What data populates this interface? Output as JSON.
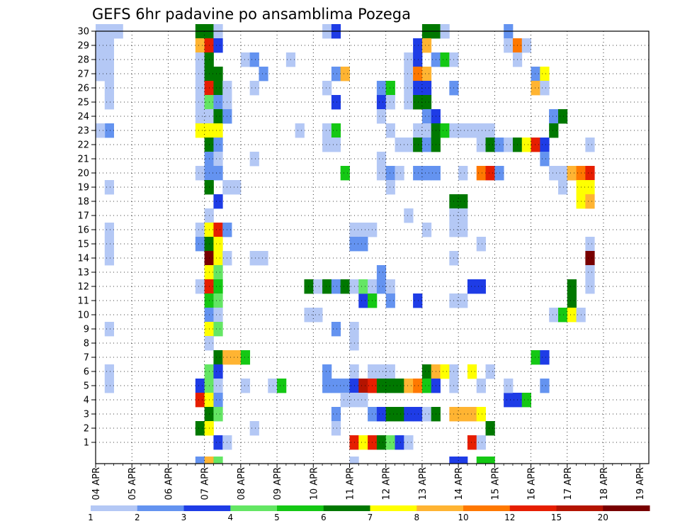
{
  "chart_data": {
    "type": "heatmap",
    "title": "GEFS 6hr padavine po ansamblima Pozega",
    "xlabel": "",
    "ylabel": "",
    "x_ticks": [
      "04 APR",
      "05 APR",
      "06 APR",
      "07 APR",
      "08 APR",
      "09 APR",
      "10 APR",
      "11 APR",
      "12 APR",
      "13 APR",
      "14 APR",
      "15 APR",
      "16 APR",
      "17 APR",
      "18 APR",
      "19 APR"
    ],
    "y_ticks": [
      "1",
      "2",
      "3",
      "4",
      "5",
      "6",
      "7",
      "8",
      "9",
      "10",
      "11",
      "12",
      "13",
      "14",
      "15",
      "16",
      "17",
      "18",
      "19",
      "20",
      "21",
      "22",
      "23",
      "24",
      "25",
      "26",
      "27",
      "28",
      "29",
      "30"
    ],
    "time_step_hours": 6,
    "ensemble_members": 30,
    "grid": true,
    "legend_position": "bottom",
    "colorbar": {
      "levels": [
        "1",
        "2",
        "3",
        "4",
        "5",
        "6",
        "7",
        "8",
        "10",
        "12",
        "15",
        "20"
      ],
      "colors": [
        "#b4c8f5",
        "#6493f0",
        "#1e3ce6",
        "#64e664",
        "#14c814",
        "#007800",
        "#ffff00",
        "#ffb432",
        "#ff7800",
        "#e61e00",
        "#b41400",
        "#780000"
      ]
    },
    "cells": [
      [
        0,
        30,
        0
      ],
      [
        0,
        29,
        0
      ],
      [
        0,
        28,
        0
      ],
      [
        0,
        27,
        0
      ],
      [
        1,
        30,
        0
      ],
      [
        1,
        29,
        0
      ],
      [
        1,
        28,
        0
      ],
      [
        1,
        27,
        0
      ],
      [
        1,
        26,
        0
      ],
      [
        1,
        25,
        0
      ],
      [
        1,
        23,
        1
      ],
      [
        1,
        19,
        0
      ],
      [
        1,
        16,
        0
      ],
      [
        1,
        15,
        0
      ],
      [
        1,
        14,
        0
      ],
      [
        1,
        9,
        0
      ],
      [
        1,
        6,
        0
      ],
      [
        1,
        5,
        0
      ],
      [
        2,
        30,
        0
      ],
      [
        0,
        23,
        0
      ],
      [
        11,
        30,
        5
      ],
      [
        11,
        29,
        7
      ],
      [
        11,
        28,
        0
      ],
      [
        11,
        27,
        0
      ],
      [
        11,
        26,
        0
      ],
      [
        11,
        25,
        0
      ],
      [
        11,
        24,
        0
      ],
      [
        11,
        23,
        6
      ],
      [
        11,
        20,
        0
      ],
      [
        11,
        16,
        0
      ],
      [
        11,
        15,
        1
      ],
      [
        11,
        12,
        0
      ],
      [
        11,
        5,
        2
      ],
      [
        11,
        4,
        9
      ],
      [
        11,
        2,
        5
      ],
      [
        11,
        0,
        1
      ],
      [
        12,
        30,
        5
      ],
      [
        12,
        29,
        9
      ],
      [
        12,
        28,
        5
      ],
      [
        12,
        27,
        5
      ],
      [
        12,
        26,
        9
      ],
      [
        12,
        25,
        3
      ],
      [
        12,
        24,
        0
      ],
      [
        12,
        23,
        6
      ],
      [
        12,
        22,
        5
      ],
      [
        12,
        21,
        1
      ],
      [
        12,
        20,
        1
      ],
      [
        12,
        19,
        5
      ],
      [
        12,
        17,
        0
      ],
      [
        12,
        16,
        6
      ],
      [
        12,
        15,
        5
      ],
      [
        12,
        14,
        11
      ],
      [
        12,
        13,
        6
      ],
      [
        12,
        12,
        9
      ],
      [
        12,
        11,
        4
      ],
      [
        12,
        10,
        1
      ],
      [
        12,
        9,
        6
      ],
      [
        12,
        8,
        0
      ],
      [
        12,
        6,
        3
      ],
      [
        12,
        5,
        3
      ],
      [
        12,
        4,
        6
      ],
      [
        12,
        3,
        5
      ],
      [
        12,
        2,
        6
      ],
      [
        12,
        0,
        7
      ],
      [
        13,
        30,
        0
      ],
      [
        13,
        29,
        2
      ],
      [
        13,
        27,
        5
      ],
      [
        13,
        26,
        5
      ],
      [
        13,
        25,
        1
      ],
      [
        13,
        24,
        5
      ],
      [
        13,
        23,
        6
      ],
      [
        13,
        22,
        1
      ],
      [
        13,
        21,
        0
      ],
      [
        13,
        20,
        1
      ],
      [
        13,
        18,
        2
      ],
      [
        13,
        16,
        9
      ],
      [
        13,
        15,
        6
      ],
      [
        13,
        14,
        6
      ],
      [
        13,
        13,
        3
      ],
      [
        13,
        12,
        4
      ],
      [
        13,
        11,
        3
      ],
      [
        13,
        10,
        0
      ],
      [
        13,
        9,
        3
      ],
      [
        13,
        7,
        5
      ],
      [
        13,
        6,
        2
      ],
      [
        13,
        5,
        0
      ],
      [
        13,
        4,
        1
      ],
      [
        13,
        3,
        3
      ],
      [
        13,
        1,
        2
      ],
      [
        13,
        0,
        3
      ],
      [
        14,
        26,
        0
      ],
      [
        14,
        25,
        0
      ],
      [
        14,
        24,
        1
      ],
      [
        14,
        19,
        0
      ],
      [
        14,
        16,
        1
      ],
      [
        14,
        14,
        0
      ],
      [
        14,
        7,
        7
      ],
      [
        14,
        1,
        0
      ],
      [
        15,
        19,
        0
      ],
      [
        15,
        7,
        7
      ],
      [
        16,
        28,
        0
      ],
      [
        16,
        7,
        4
      ],
      [
        16,
        5,
        0
      ],
      [
        17,
        28,
        1
      ],
      [
        17,
        26,
        0
      ],
      [
        17,
        21,
        0
      ],
      [
        17,
        14,
        0
      ],
      [
        18,
        27,
        1
      ],
      [
        18,
        14,
        0
      ],
      [
        17,
        2,
        0
      ],
      [
        19,
        5,
        0
      ],
      [
        20,
        5,
        4
      ],
      [
        21,
        28,
        0
      ],
      [
        22,
        23,
        0
      ],
      [
        23,
        12,
        5
      ],
      [
        23,
        10,
        0
      ],
      [
        24,
        12,
        0
      ],
      [
        24,
        10,
        0
      ],
      [
        25,
        30,
        0
      ],
      [
        25,
        26,
        0
      ],
      [
        25,
        23,
        0
      ],
      [
        25,
        22,
        0
      ],
      [
        25,
        12,
        5
      ],
      [
        25,
        6,
        1
      ],
      [
        25,
        5,
        1
      ],
      [
        26,
        30,
        2
      ],
      [
        26,
        27,
        1
      ],
      [
        26,
        25,
        2
      ],
      [
        26,
        23,
        4
      ],
      [
        26,
        22,
        0
      ],
      [
        26,
        12,
        1
      ],
      [
        26,
        9,
        1
      ],
      [
        26,
        5,
        1
      ],
      [
        26,
        3,
        1
      ],
      [
        26,
        2,
        0
      ],
      [
        27,
        27,
        7
      ],
      [
        27,
        20,
        4
      ],
      [
        27,
        12,
        5
      ],
      [
        27,
        5,
        1
      ],
      [
        27,
        4,
        0
      ],
      [
        28,
        16,
        0
      ],
      [
        28,
        15,
        1
      ],
      [
        28,
        12,
        0
      ],
      [
        28,
        8,
        0
      ],
      [
        28,
        6,
        0
      ],
      [
        28,
        5,
        2
      ],
      [
        28,
        4,
        0
      ],
      [
        28,
        9,
        0
      ],
      [
        28,
        1,
        9
      ],
      [
        28,
        0,
        0
      ],
      [
        29,
        16,
        0
      ],
      [
        29,
        15,
        1
      ],
      [
        29,
        11,
        2
      ],
      [
        29,
        12,
        3
      ],
      [
        29,
        5,
        10
      ],
      [
        29,
        4,
        0
      ],
      [
        29,
        1,
        6
      ],
      [
        30,
        16,
        0
      ],
      [
        30,
        12,
        0
      ],
      [
        30,
        11,
        4
      ],
      [
        30,
        6,
        0
      ],
      [
        30,
        5,
        9
      ],
      [
        30,
        3,
        1
      ],
      [
        30,
        1,
        9
      ],
      [
        31,
        26,
        1
      ],
      [
        31,
        25,
        2
      ],
      [
        31,
        24,
        0
      ],
      [
        31,
        21,
        0
      ],
      [
        31,
        20,
        0
      ],
      [
        31,
        13,
        1
      ],
      [
        31,
        12,
        1
      ],
      [
        31,
        6,
        0
      ],
      [
        31,
        5,
        5
      ],
      [
        31,
        3,
        2
      ],
      [
        31,
        1,
        5
      ],
      [
        32,
        26,
        4
      ],
      [
        32,
        25,
        0
      ],
      [
        32,
        23,
        0
      ],
      [
        32,
        20,
        1
      ],
      [
        32,
        19,
        0
      ],
      [
        32,
        12,
        0
      ],
      [
        32,
        11,
        1
      ],
      [
        32,
        6,
        0
      ],
      [
        32,
        5,
        5
      ],
      [
        32,
        3,
        5
      ],
      [
        32,
        1,
        3
      ],
      [
        33,
        22,
        0
      ],
      [
        33,
        20,
        0
      ],
      [
        33,
        5,
        5
      ],
      [
        33,
        3,
        5
      ],
      [
        33,
        1,
        2
      ],
      [
        34,
        28,
        0
      ],
      [
        34,
        27,
        0
      ],
      [
        34,
        26,
        0
      ],
      [
        34,
        25,
        0
      ],
      [
        34,
        22,
        0
      ],
      [
        34,
        17,
        0
      ],
      [
        34,
        5,
        7
      ],
      [
        34,
        3,
        2
      ],
      [
        34,
        1,
        0
      ],
      [
        35,
        29,
        2
      ],
      [
        35,
        28,
        2
      ],
      [
        35,
        27,
        8
      ],
      [
        35,
        26,
        2
      ],
      [
        35,
        25,
        5
      ],
      [
        35,
        23,
        0
      ],
      [
        35,
        22,
        5
      ],
      [
        35,
        20,
        1
      ],
      [
        35,
        11,
        2
      ],
      [
        35,
        5,
        8
      ],
      [
        35,
        3,
        2
      ],
      [
        36,
        30,
        5
      ],
      [
        36,
        29,
        7
      ],
      [
        36,
        27,
        7
      ],
      [
        36,
        26,
        2
      ],
      [
        36,
        25,
        5
      ],
      [
        36,
        24,
        1
      ],
      [
        36,
        23,
        0
      ],
      [
        36,
        22,
        1
      ],
      [
        36,
        20,
        1
      ],
      [
        36,
        16,
        0
      ],
      [
        36,
        6,
        5
      ],
      [
        36,
        5,
        4
      ],
      [
        36,
        3,
        0
      ],
      [
        37,
        30,
        5
      ],
      [
        37,
        28,
        1
      ],
      [
        37,
        24,
        2
      ],
      [
        37,
        23,
        5
      ],
      [
        37,
        22,
        5
      ],
      [
        37,
        20,
        1
      ],
      [
        37,
        6,
        7
      ],
      [
        37,
        5,
        2
      ],
      [
        37,
        3,
        5
      ],
      [
        38,
        30,
        0
      ],
      [
        38,
        28,
        4
      ],
      [
        38,
        23,
        4
      ],
      [
        38,
        6,
        6
      ],
      [
        39,
        28,
        0
      ],
      [
        39,
        26,
        1
      ],
      [
        39,
        23,
        0
      ],
      [
        39,
        18,
        5
      ],
      [
        39,
        17,
        0
      ],
      [
        39,
        16,
        0
      ],
      [
        39,
        14,
        0
      ],
      [
        39,
        11,
        0
      ],
      [
        39,
        6,
        0
      ],
      [
        39,
        5,
        0
      ],
      [
        39,
        3,
        7
      ],
      [
        39,
        0,
        2
      ],
      [
        40,
        23,
        0
      ],
      [
        40,
        20,
        0
      ],
      [
        40,
        18,
        5
      ],
      [
        40,
        17,
        0
      ],
      [
        40,
        16,
        0
      ],
      [
        40,
        11,
        0
      ],
      [
        40,
        3,
        7
      ],
      [
        40,
        0,
        2
      ],
      [
        41,
        23,
        0
      ],
      [
        41,
        12,
        2
      ],
      [
        41,
        6,
        6
      ],
      [
        41,
        3,
        7
      ],
      [
        41,
        1,
        9
      ],
      [
        42,
        23,
        0
      ],
      [
        42,
        22,
        0
      ],
      [
        42,
        20,
        8
      ],
      [
        42,
        15,
        0
      ],
      [
        42,
        12,
        2
      ],
      [
        42,
        5,
        0
      ],
      [
        42,
        3,
        6
      ],
      [
        42,
        1,
        0
      ],
      [
        42,
        0,
        4
      ],
      [
        43,
        23,
        0
      ],
      [
        43,
        22,
        5
      ],
      [
        43,
        20,
        9
      ],
      [
        43,
        6,
        0
      ],
      [
        43,
        2,
        5
      ],
      [
        43,
        0,
        4
      ],
      [
        44,
        22,
        1
      ],
      [
        44,
        20,
        1
      ],
      [
        45,
        30,
        1
      ],
      [
        45,
        29,
        0
      ],
      [
        45,
        22,
        0
      ],
      [
        45,
        4,
        2
      ],
      [
        45,
        5,
        0
      ],
      [
        46,
        29,
        8
      ],
      [
        46,
        28,
        0
      ],
      [
        46,
        22,
        5
      ],
      [
        46,
        4,
        2
      ],
      [
        47,
        29,
        0
      ],
      [
        47,
        22,
        6
      ],
      [
        47,
        4,
        4
      ],
      [
        48,
        27,
        1
      ],
      [
        48,
        26,
        7
      ],
      [
        48,
        22,
        9
      ],
      [
        48,
        7,
        4
      ],
      [
        49,
        27,
        6
      ],
      [
        49,
        26,
        0
      ],
      [
        49,
        22,
        2
      ],
      [
        49,
        21,
        1
      ],
      [
        49,
        7,
        2
      ],
      [
        49,
        5,
        1
      ],
      [
        50,
        24,
        1
      ],
      [
        50,
        24,
        1
      ],
      [
        50,
        23,
        5
      ],
      [
        50,
        20,
        0
      ],
      [
        50,
        10,
        0
      ],
      [
        51,
        24,
        5
      ],
      [
        51,
        20,
        0
      ],
      [
        51,
        19,
        0
      ],
      [
        51,
        10,
        4
      ],
      [
        52,
        20,
        7
      ],
      [
        52,
        12,
        5
      ],
      [
        52,
        11,
        5
      ],
      [
        52,
        10,
        6
      ],
      [
        52,
        20,
        7
      ],
      [
        53,
        20,
        8
      ],
      [
        53,
        19,
        6
      ],
      [
        53,
        18,
        6
      ],
      [
        53,
        10,
        0
      ],
      [
        54,
        22,
        0
      ],
      [
        54,
        20,
        9
      ],
      [
        54,
        19,
        6
      ],
      [
        54,
        18,
        7
      ],
      [
        54,
        15,
        0
      ],
      [
        54,
        14,
        11
      ],
      [
        54,
        13,
        0
      ],
      [
        54,
        12,
        0
      ]
    ]
  }
}
